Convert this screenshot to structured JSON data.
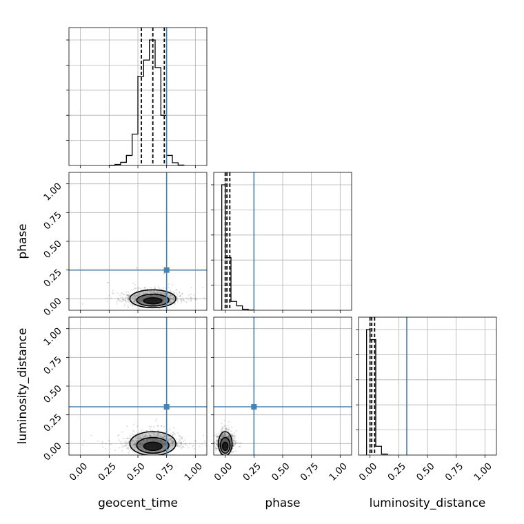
{
  "chart_data": {
    "type": "corner",
    "parameters": [
      "geocent_time",
      "phase",
      "luminosity_distance"
    ],
    "axis_range": [
      -0.1,
      1.1
    ],
    "tick_values": [
      0.0,
      0.25,
      0.5,
      0.75,
      1.0
    ],
    "tick_labels": [
      "0.00",
      "0.25",
      "0.50",
      "0.75",
      "1.00"
    ],
    "grid": true,
    "truth_color": "#4682b4",
    "truths": {
      "geocent_time": 0.75,
      "phase": 0.25,
      "luminosity_distance": 0.32
    },
    "quantiles": {
      "geocent_time": [
        0.53,
        0.63,
        0.73
      ],
      "phase": [
        0.0,
        0.015,
        0.04
      ],
      "luminosity_distance": [
        0.0,
        0.015,
        0.04
      ]
    },
    "histograms": {
      "geocent_time": {
        "bin_edges": [
          0.25,
          0.3,
          0.35,
          0.4,
          0.45,
          0.5,
          0.55,
          0.6,
          0.65,
          0.7,
          0.75,
          0.8,
          0.85,
          0.9
        ],
        "counts": [
          1,
          8,
          25,
          80,
          250,
          710,
          840,
          1000,
          780,
          400,
          80,
          22,
          3
        ]
      },
      "phase": {
        "bin_edges": [
          -0.03,
          0.0,
          0.05,
          0.1,
          0.15,
          0.2,
          0.25
        ],
        "counts": [
          1000,
          420,
          70,
          35,
          8,
          2
        ]
      },
      "luminosity_distance": {
        "bin_edges": [
          -0.03,
          0.0,
          0.05,
          0.1,
          0.15
        ],
        "counts": [
          1000,
          920,
          70,
          8
        ]
      }
    },
    "scatter_panels": [
      {
        "x": "geocent_time",
        "y": "phase",
        "center": [
          0.63,
          0.0
        ],
        "spread": [
          0.1,
          0.03
        ]
      },
      {
        "x": "geocent_time",
        "y": "luminosity_distance",
        "center": [
          0.63,
          0.0
        ],
        "spread": [
          0.1,
          0.04
        ]
      },
      {
        "x": "phase",
        "y": "luminosity_distance",
        "center": [
          0.0,
          0.0
        ],
        "spread": [
          0.03,
          0.04
        ]
      }
    ],
    "outlier_points": [
      [
        0.75,
        0.6
      ],
      [
        0.49,
        0.27
      ],
      [
        0.73,
        0.22
      ],
      [
        0.24,
        0.14
      ],
      [
        0.36,
        0.05
      ],
      [
        0.42,
        0.03
      ]
    ]
  }
}
